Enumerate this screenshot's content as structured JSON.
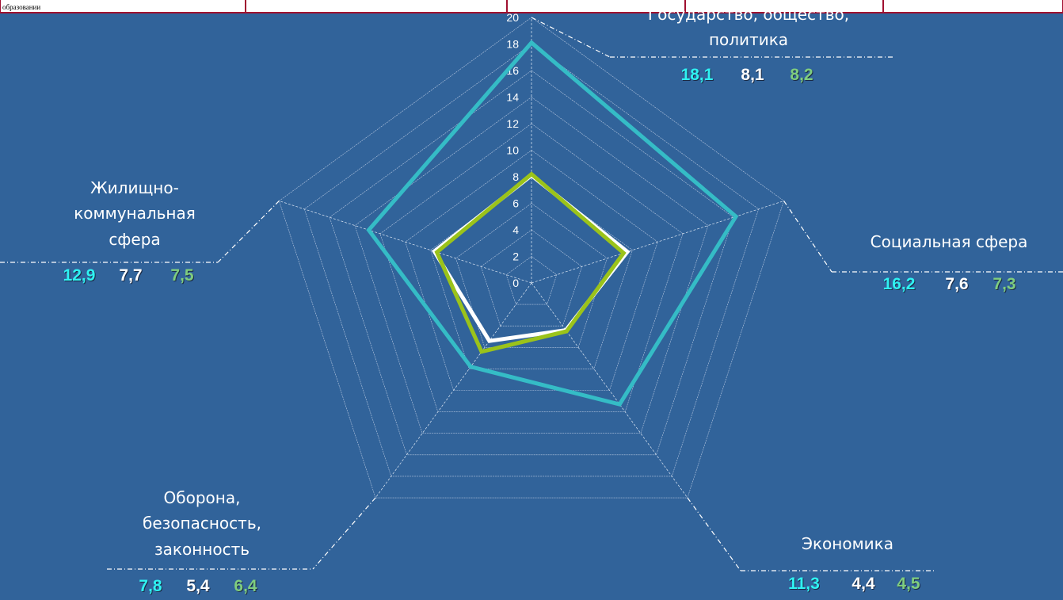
{
  "header_fragment": "образовании",
  "chart_data": {
    "type": "radar",
    "categories": [
      [
        "Государство, общество,",
        "политика"
      ],
      [
        "Социальная сфера"
      ],
      [
        "Экономика"
      ],
      [
        "Оборона,",
        "безопасность,",
        "законность"
      ],
      [
        "Жилищно-",
        "коммунальная",
        "сфера"
      ]
    ],
    "ylim": [
      0,
      20
    ],
    "yticks": [
      0,
      2,
      4,
      6,
      8,
      10,
      12,
      14,
      16,
      18,
      20
    ],
    "grid": true,
    "series": [
      {
        "color": "#35bcc6",
        "label_color": "#2ff2f2",
        "values": [
          18.1,
          16.2,
          11.3,
          7.8,
          12.9
        ],
        "value_labels": [
          "18,1",
          "16,2",
          "11,3",
          "7,8",
          "12,9"
        ]
      },
      {
        "color": "#ffffff",
        "label_color": "#ffffff",
        "values": [
          8.1,
          7.6,
          4.4,
          5.4,
          7.7
        ],
        "value_labels": [
          "8,1",
          "7,6",
          "4,4",
          "5,4",
          "7,7"
        ]
      },
      {
        "color": "#9bc31a",
        "label_color": "#7fcd7f",
        "values": [
          8.2,
          7.3,
          4.5,
          6.4,
          7.5
        ],
        "value_labels": [
          "8,2",
          "7,3",
          "4,5",
          "6,4",
          "7,5"
        ]
      }
    ]
  }
}
